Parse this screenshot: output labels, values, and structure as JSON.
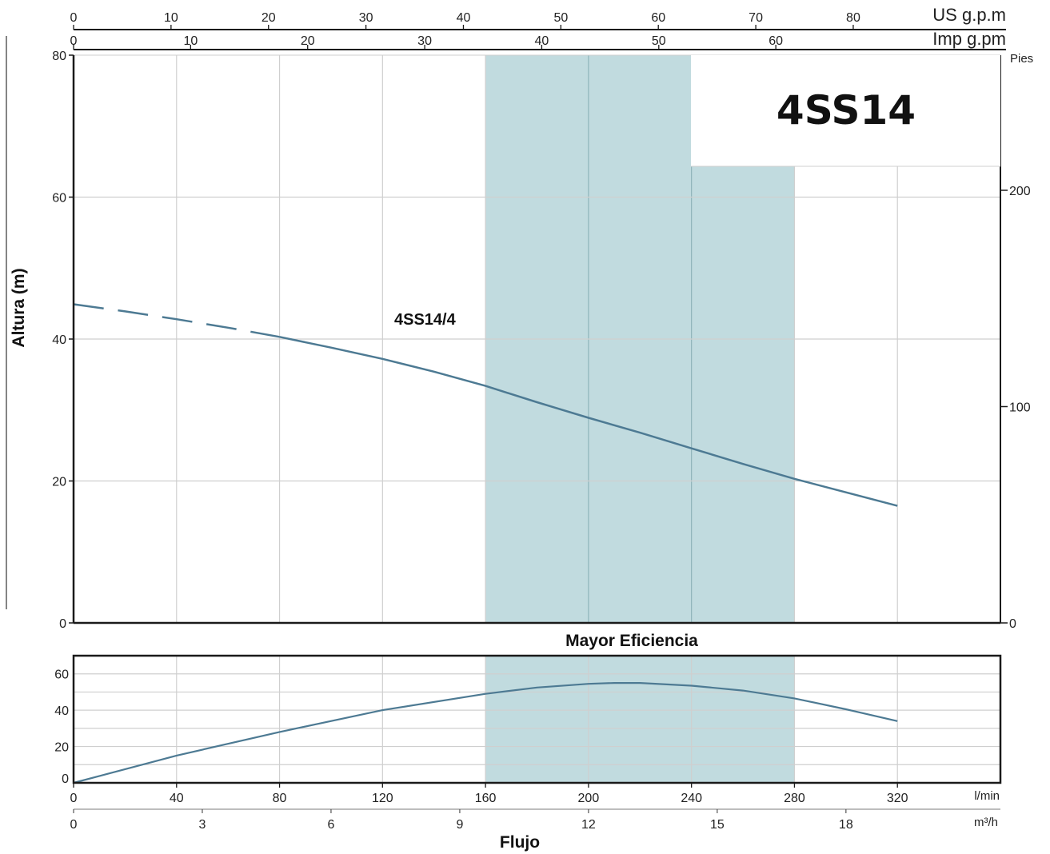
{
  "chart_data": [
    {
      "type": "line",
      "title": "4SS14",
      "ylabel": "Altura (m)",
      "ylabel_right": "Pies",
      "xlabel": "Flujo",
      "x_unit": "l/min",
      "x_unit2": "m³/h",
      "top_unit1": "US g.p.m",
      "top_unit2": "Imp g.pm",
      "xlim": [
        0,
        360
      ],
      "ylim": [
        0,
        80
      ],
      "x_ticks": [
        0,
        40,
        80,
        120,
        160,
        200,
        240,
        280,
        320
      ],
      "x2_ticks": [
        0,
        3,
        6,
        9,
        12,
        15,
        18
      ],
      "us_gpm_ticks": [
        0,
        10,
        20,
        30,
        40,
        50,
        60,
        70,
        80
      ],
      "imp_gpm_ticks": [
        0,
        10,
        20,
        30,
        40,
        50,
        60
      ],
      "y_ticks": [
        0,
        20,
        40,
        60,
        80
      ],
      "y_right_ticks": [
        0,
        100,
        200
      ],
      "highlight_band": {
        "x_from": 160,
        "x_to": 280,
        "y_top": 80,
        "y_top_right_part": 64.3,
        "step_at_x": 240
      },
      "grid": true,
      "series": [
        {
          "name": "4SS14/4",
          "color": "#4d7a93",
          "dashed_until_x": 80,
          "x": [
            0,
            20,
            40,
            60,
            80,
            100,
            120,
            140,
            160,
            180,
            200,
            220,
            240,
            260,
            280,
            300,
            320
          ],
          "y": [
            44.9,
            43.9,
            42.8,
            41.6,
            40.3,
            38.8,
            37.2,
            35.4,
            33.4,
            31.1,
            28.9,
            26.8,
            24.6,
            22.4,
            20.3,
            18.4,
            16.5
          ]
        }
      ]
    },
    {
      "type": "line",
      "title": "Mayor Eficiencia",
      "xlim": [
        0,
        360
      ],
      "ylim": [
        0,
        70
      ],
      "y_ticks": [
        0,
        20,
        40,
        60
      ],
      "highlight_band": {
        "x_from": 160,
        "x_to": 280
      },
      "grid": true,
      "series": [
        {
          "name": "",
          "color": "#4d7a93",
          "x": [
            0,
            40,
            80,
            120,
            160,
            180,
            200,
            210,
            220,
            240,
            260,
            280,
            300,
            320
          ],
          "y": [
            0,
            15,
            28,
            40,
            49,
            52.5,
            54.5,
            55,
            55,
            53.5,
            50.8,
            46.5,
            40.5,
            34
          ]
        }
      ]
    }
  ],
  "colors": {
    "band": "#c1dbdf",
    "band_line": "#8fb4ba",
    "curve": "#4d7a93",
    "grid": "#cfcfcf",
    "frame": "#1a1a1a"
  }
}
